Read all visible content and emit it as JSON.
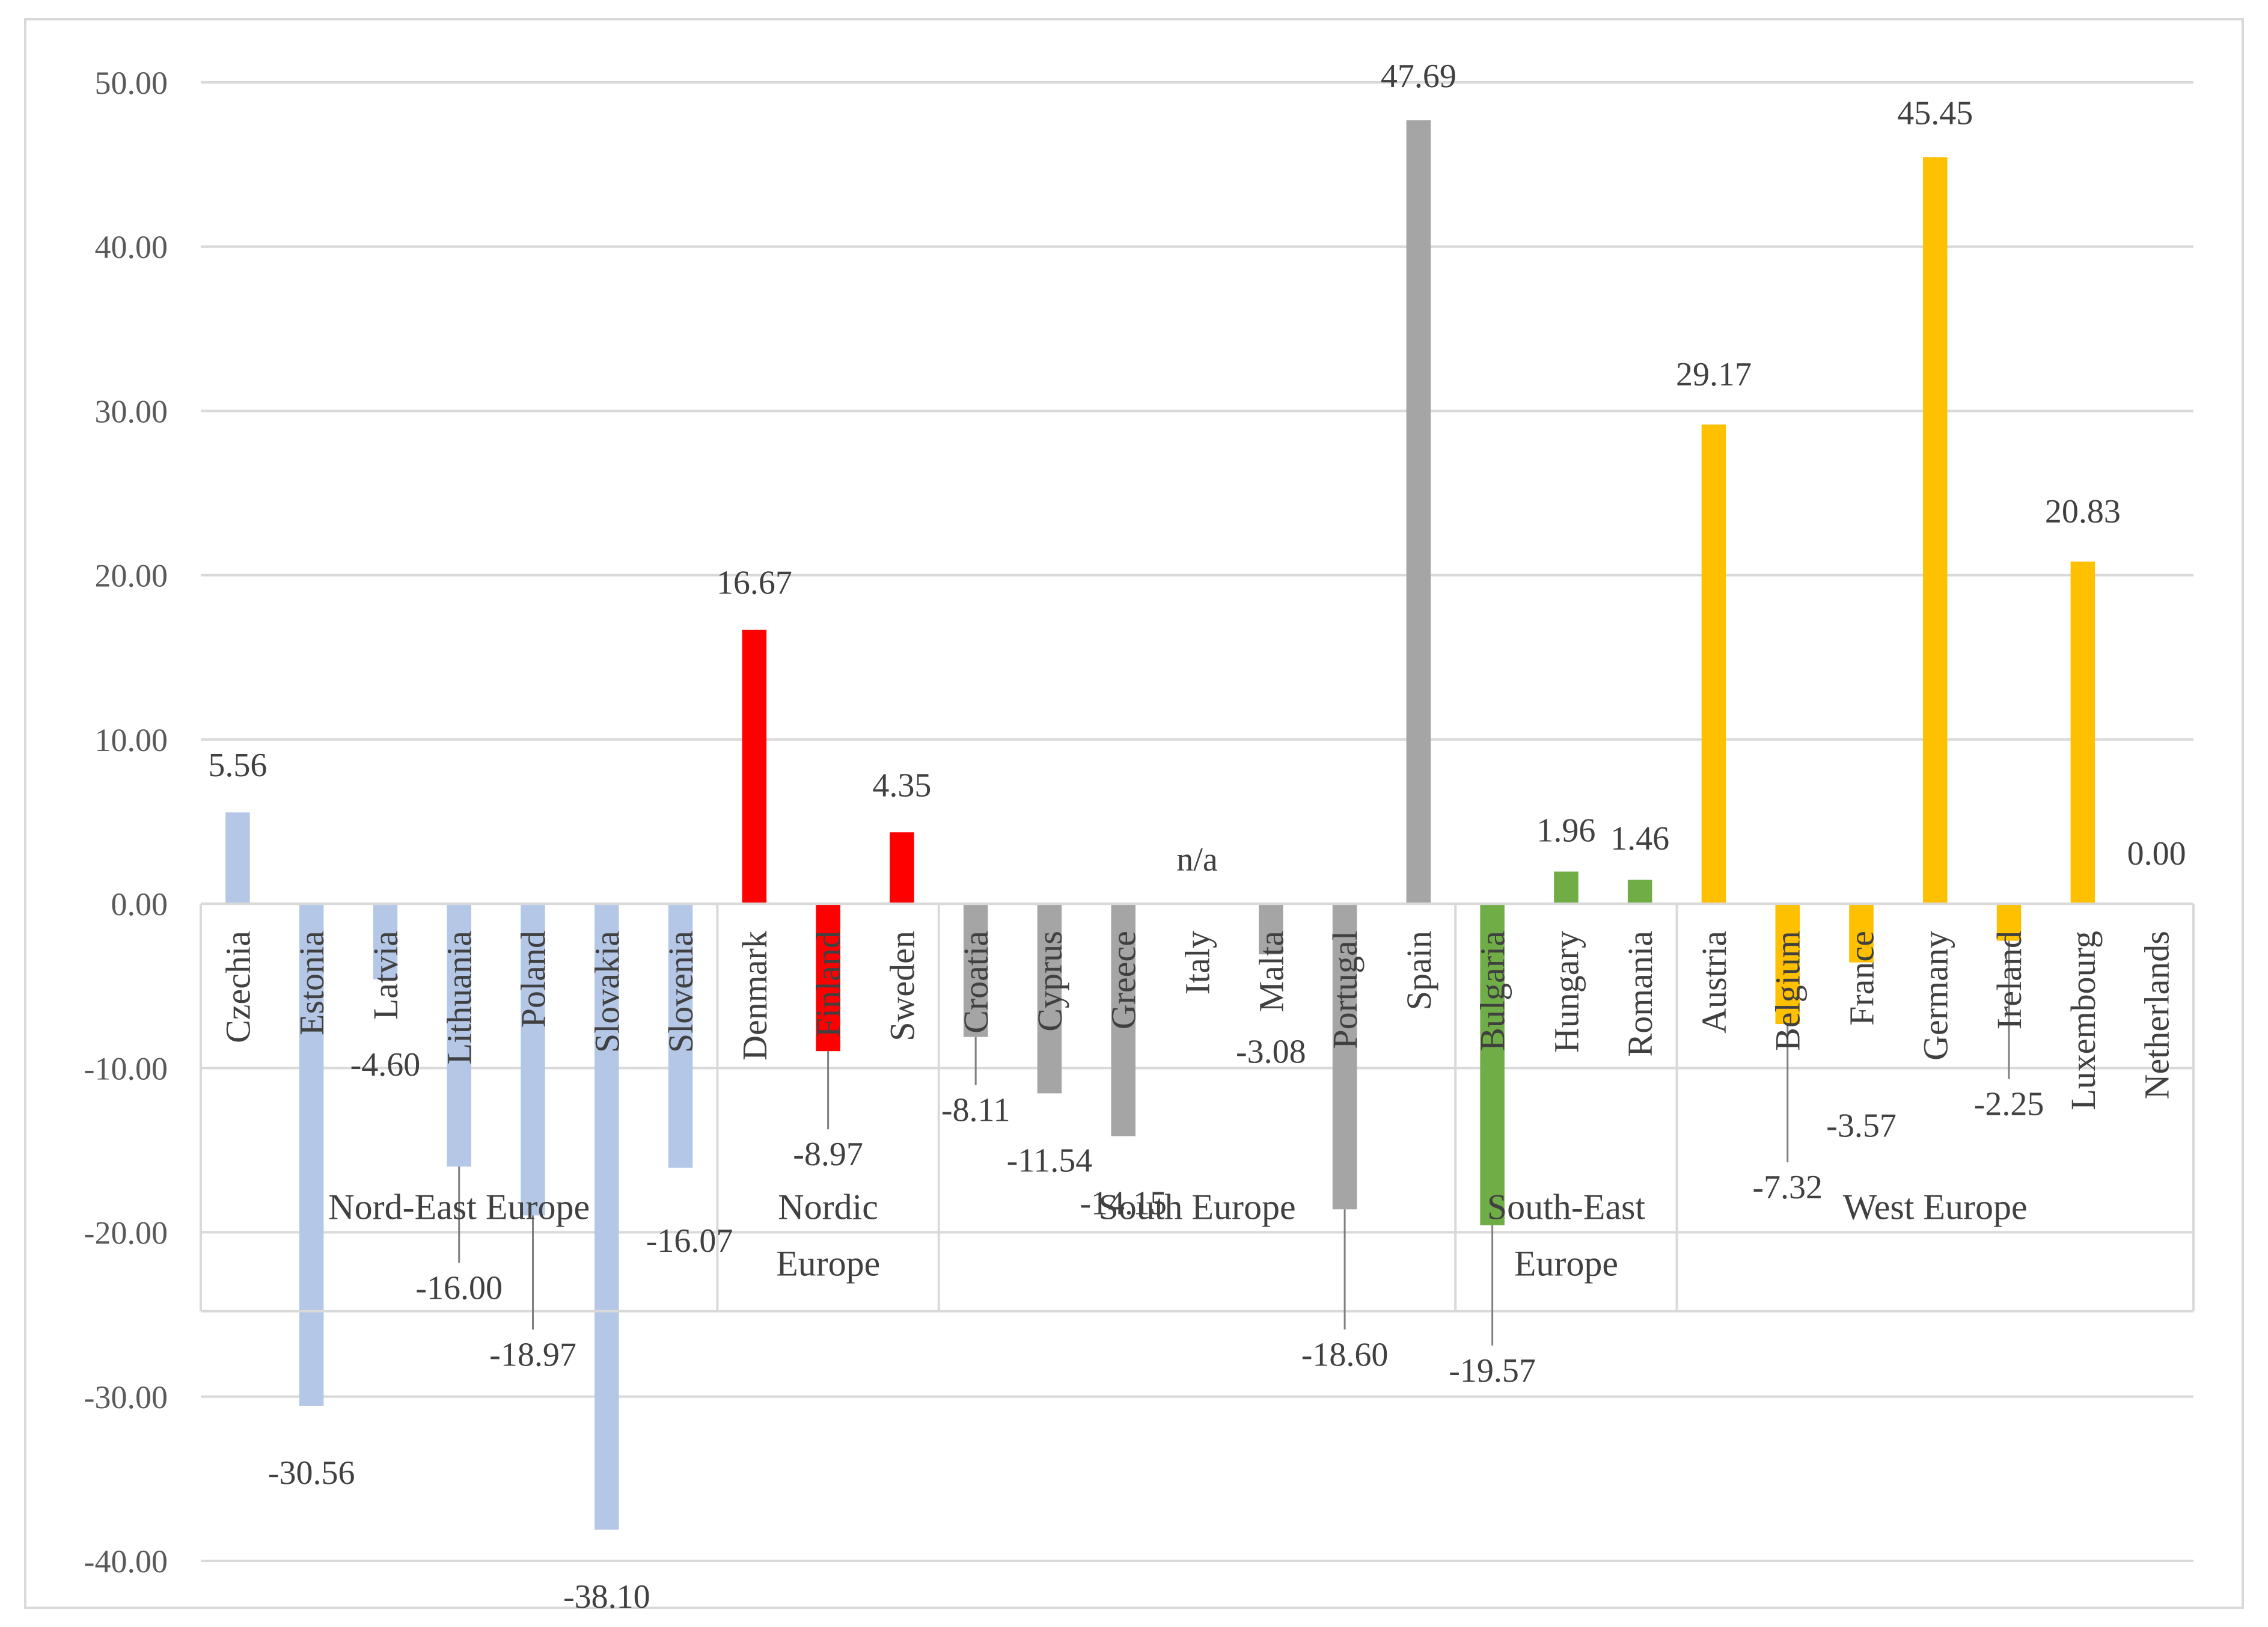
{
  "chart_data": {
    "type": "bar",
    "title": "",
    "xlabel": "",
    "ylabel": "",
    "ylim": [
      -40,
      50
    ],
    "yticks": [
      50,
      40,
      30,
      20,
      10,
      0,
      -10,
      -20,
      -30,
      -40
    ],
    "ytick_labels": [
      "50.00",
      "40.00",
      "30.00",
      "20.00",
      "10.00",
      "0.00",
      "-10.00",
      "-20.00",
      "-30.00",
      "-40.00"
    ],
    "grid": true,
    "legend": "none",
    "groups": [
      {
        "name": "Nord-East Europe",
        "label_lines": [
          "Nord-East Europe"
        ],
        "color": "#b4c7e7",
        "categories": [
          "Czechia",
          "Estonia",
          "Latvia",
          "Lithuania",
          "Poland",
          "Slovakia",
          "Slovenia"
        ],
        "values": [
          5.56,
          -30.56,
          -4.6,
          -16.0,
          -18.97,
          -38.1,
          -16.07
        ],
        "labels": [
          "5.56",
          "-30.56",
          "-4.60",
          "-16.00",
          "-18.97",
          "-38.10",
          "-16.07"
        ]
      },
      {
        "name": "Nordic Europe",
        "label_lines": [
          "Nordic",
          "Europe"
        ],
        "color": "#ff0000",
        "categories": [
          "Denmark",
          "Finland",
          "Sweden"
        ],
        "values": [
          16.67,
          -8.97,
          4.35
        ],
        "labels": [
          "16.67",
          "-8.97",
          "4.35"
        ]
      },
      {
        "name": "South Europe",
        "label_lines": [
          "South Europe"
        ],
        "color": "#a5a5a5",
        "categories": [
          "Croatia",
          "Cyprus",
          "Greece",
          "Italy",
          "Malta",
          "Portugal",
          "Spain"
        ],
        "values": [
          -8.11,
          -11.54,
          -14.15,
          null,
          -3.08,
          -18.6,
          47.69
        ],
        "labels": [
          "-8.11",
          "-11.54",
          "-14.15",
          "n/a",
          "-3.08",
          "-18.60",
          "47.69"
        ]
      },
      {
        "name": "South-East Europe",
        "label_lines": [
          "South-East",
          "Europe"
        ],
        "color": "#70ad47",
        "categories": [
          "Bulgaria",
          "Hungary",
          "Romania"
        ],
        "values": [
          -19.57,
          1.96,
          1.46
        ],
        "labels": [
          "-19.57",
          "1.96",
          "1.46"
        ]
      },
      {
        "name": "West Europe",
        "label_lines": [
          "West Europe"
        ],
        "color": "#ffc000",
        "categories": [
          "Austria",
          "Belgium",
          "France",
          "Germany",
          "Ireland",
          "Luxembourg",
          "Netherlands"
        ],
        "values": [
          29.17,
          -7.32,
          -3.57,
          45.45,
          -2.25,
          20.83,
          0.0
        ],
        "labels": [
          "29.17",
          "-7.32",
          "-3.57",
          "45.45",
          "-2.25",
          "20.83",
          "0.00"
        ]
      }
    ]
  }
}
